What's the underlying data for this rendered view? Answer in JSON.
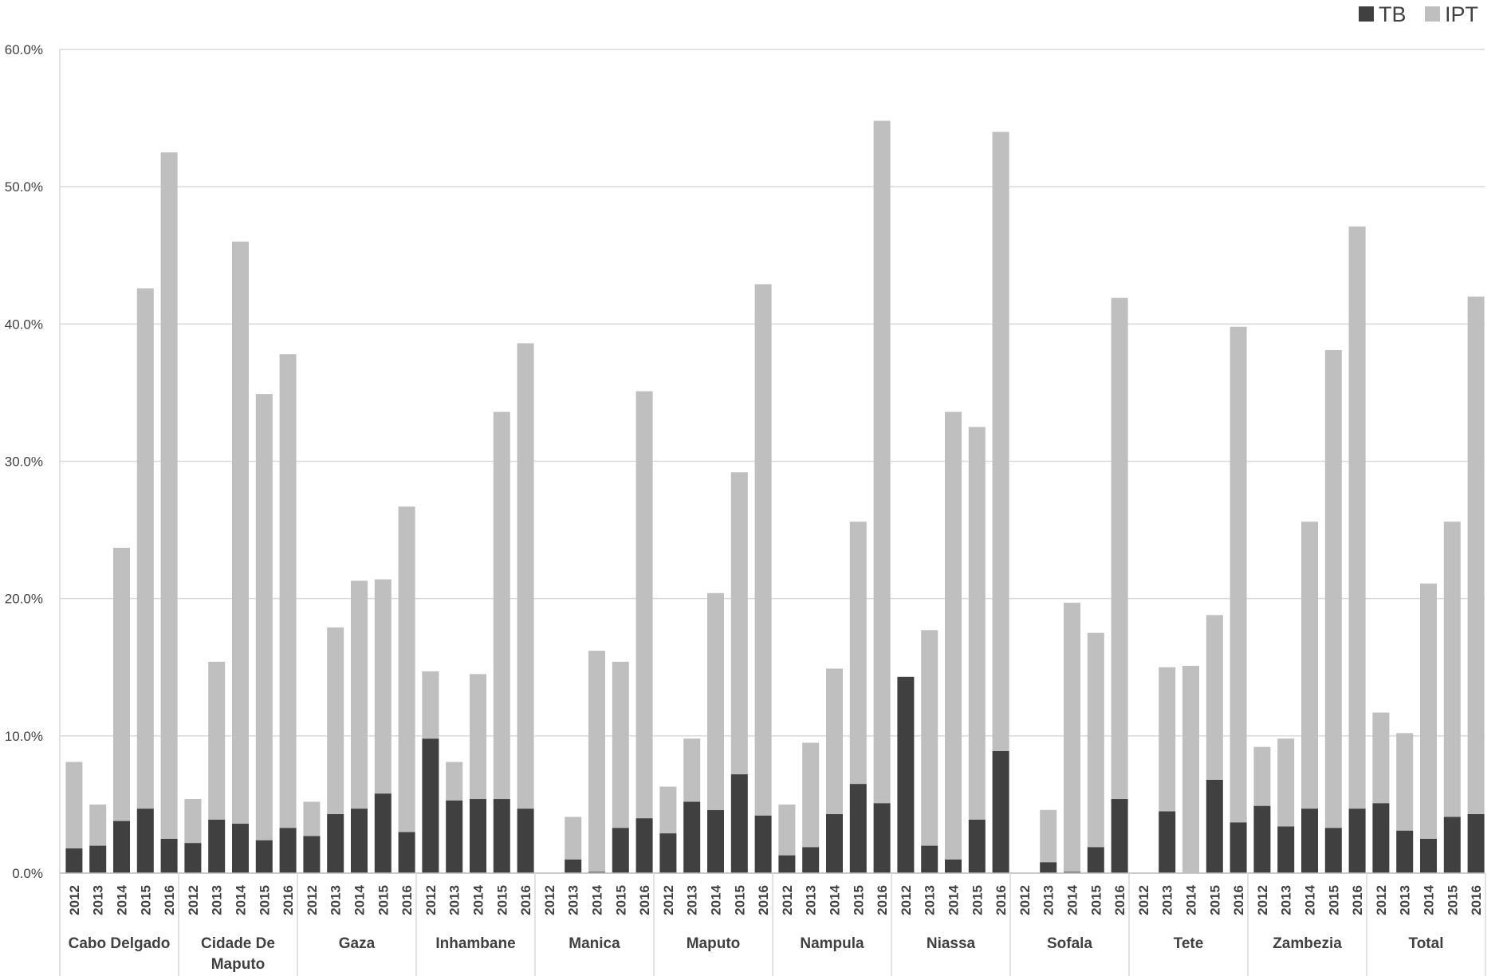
{
  "chart_data": {
    "type": "bar",
    "stacked": true,
    "title": "",
    "xlabel": "",
    "ylabel": "",
    "ylim": [
      0,
      60
    ],
    "y_ticks": [
      "0.0%",
      "10.0%",
      "20.0%",
      "30.0%",
      "40.0%",
      "50.0%",
      "60.0%"
    ],
    "grid": true,
    "legend_position": "top-right",
    "years": [
      "2012",
      "2013",
      "2014",
      "2015",
      "2016"
    ],
    "groups": [
      {
        "name": "Cabo Delgado",
        "label_lines": [
          "Cabo Delgado"
        ]
      },
      {
        "name": "Cidade De Maputo",
        "label_lines": [
          "Cidade De",
          "Maputo"
        ]
      },
      {
        "name": "Gaza",
        "label_lines": [
          "Gaza"
        ]
      },
      {
        "name": "Inhambane",
        "label_lines": [
          "Inhambane"
        ]
      },
      {
        "name": "Manica",
        "label_lines": [
          "Manica"
        ]
      },
      {
        "name": "Maputo",
        "label_lines": [
          "Maputo"
        ]
      },
      {
        "name": "Nampula",
        "label_lines": [
          "Nampula"
        ]
      },
      {
        "name": "Niassa",
        "label_lines": [
          "Niassa"
        ]
      },
      {
        "name": "Sofala",
        "label_lines": [
          "Sofala"
        ]
      },
      {
        "name": "Tete",
        "label_lines": [
          "Tete"
        ]
      },
      {
        "name": "Zambezia",
        "label_lines": [
          "Zambezia"
        ]
      },
      {
        "name": "Total",
        "label_lines": [
          "Total"
        ]
      }
    ],
    "series": [
      {
        "name": "TB",
        "color": "#404040",
        "values": [
          [
            1.8,
            2.0,
            3.8,
            4.7,
            2.5
          ],
          [
            2.2,
            3.9,
            3.6,
            2.4,
            3.3
          ],
          [
            2.7,
            4.3,
            4.7,
            5.8,
            3.0
          ],
          [
            9.8,
            5.3,
            5.4,
            5.4,
            4.7
          ],
          [
            0.0,
            1.0,
            0.1,
            3.3,
            4.0
          ],
          [
            2.9,
            5.2,
            4.6,
            7.2,
            4.2
          ],
          [
            1.3,
            1.9,
            4.3,
            6.5,
            5.1
          ],
          [
            14.3,
            2.0,
            1.0,
            3.9,
            8.9
          ],
          [
            0.0,
            0.8,
            0.1,
            1.9,
            5.4
          ],
          [
            0.0,
            4.5,
            0.0,
            6.8,
            3.7
          ],
          [
            4.9,
            3.4,
            4.7,
            3.3,
            4.7
          ],
          [
            5.1,
            3.1,
            2.5,
            4.1,
            4.3
          ]
        ]
      },
      {
        "name": "IPT",
        "color": "#bfbfbf",
        "values": [
          [
            6.3,
            3.0,
            19.9,
            37.9,
            50.0
          ],
          [
            3.2,
            11.5,
            42.4,
            32.5,
            34.5
          ],
          [
            2.5,
            13.6,
            16.6,
            15.6,
            23.7
          ],
          [
            4.9,
            2.8,
            9.1,
            28.2,
            33.9
          ],
          [
            0.0,
            3.1,
            16.1,
            12.1,
            31.1
          ],
          [
            3.4,
            4.6,
            15.8,
            22.0,
            38.7
          ],
          [
            3.7,
            7.6,
            10.6,
            19.1,
            49.7
          ],
          [
            0.0,
            15.7,
            32.6,
            28.6,
            45.1
          ],
          [
            0.0,
            3.8,
            19.6,
            15.6,
            36.5
          ],
          [
            0.0,
            10.5,
            15.1,
            12.0,
            36.1
          ],
          [
            4.3,
            6.4,
            20.9,
            34.8,
            42.4
          ],
          [
            6.6,
            7.1,
            18.6,
            21.5,
            37.7
          ]
        ]
      }
    ]
  }
}
